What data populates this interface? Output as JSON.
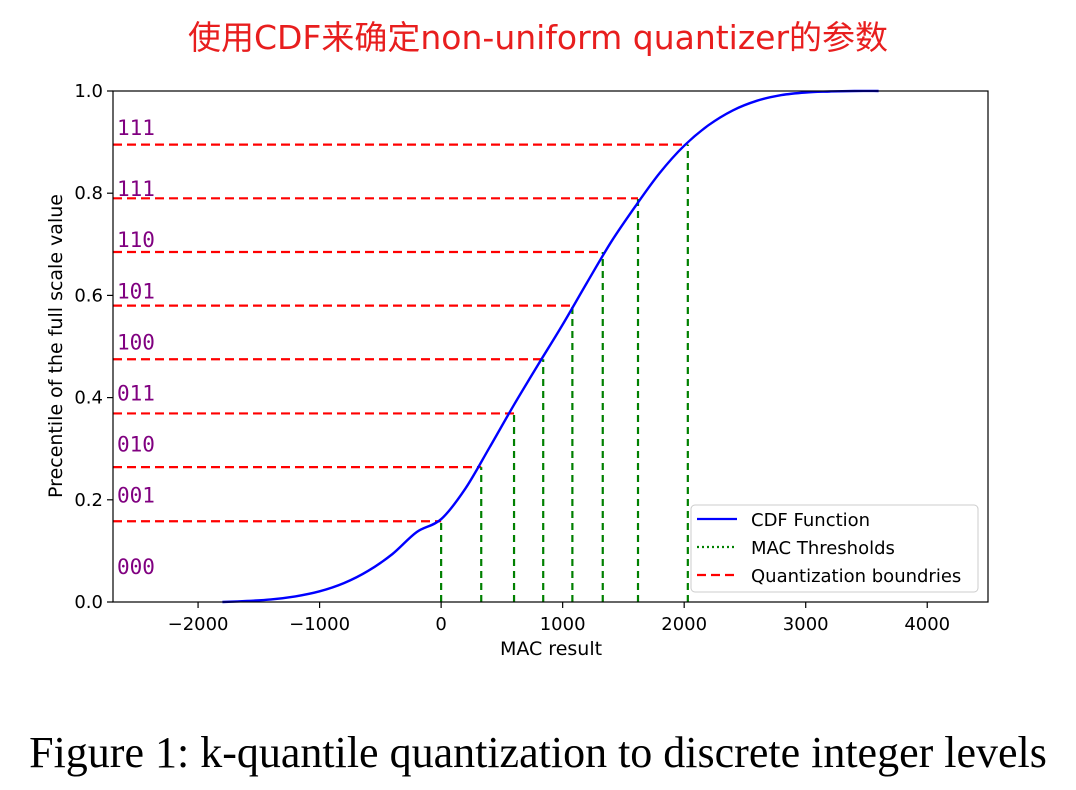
{
  "banner": "使用CDF来确定non-uniform quantizer的参数",
  "caption": "Figure 1: k-quantile quantization to discrete integer levels",
  "colors": {
    "cdf": "#0000ff",
    "threshold": "#008000",
    "boundary": "#ff0000",
    "code_label": "#800080"
  },
  "chart_data": {
    "type": "line",
    "title": "",
    "xlabel": "MAC result",
    "ylabel": "Precentile of the full scale value",
    "xlim": [
      -2700,
      4500
    ],
    "ylim": [
      0.0,
      1.0
    ],
    "x_ticks": [
      -2000,
      -1000,
      0,
      1000,
      2000,
      3000,
      4000
    ],
    "x_tick_labels": [
      "−2000",
      "−1000",
      "0",
      "1000",
      "2000",
      "3000",
      "4000"
    ],
    "y_ticks": [
      0.0,
      0.2,
      0.4,
      0.6,
      0.8,
      1.0
    ],
    "y_tick_labels": [
      "0.0",
      "0.2",
      "0.4",
      "0.6",
      "0.8",
      "1.0"
    ],
    "legend": {
      "placement": "lower right",
      "entries": [
        "CDF Function",
        "MAC Thresholds",
        "Quantization boundries"
      ]
    },
    "series": [
      {
        "name": "CDF Function",
        "style": "solid",
        "x": [
          -1800,
          -1600,
          -1400,
          -1200,
          -1000,
          -800,
          -600,
          -400,
          -200,
          0,
          200,
          400,
          600,
          800,
          1000,
          1200,
          1400,
          1600,
          1800,
          2000,
          2200,
          2400,
          2600,
          2800,
          3000,
          3200,
          3400,
          3600
        ],
        "y": [
          0.0,
          0.002,
          0.005,
          0.011,
          0.021,
          0.037,
          0.061,
          0.094,
          0.137,
          0.162,
          0.222,
          0.303,
          0.386,
          0.465,
          0.543,
          0.625,
          0.705,
          0.775,
          0.84,
          0.893,
          0.933,
          0.962,
          0.981,
          0.992,
          0.997,
          0.999,
          1.0,
          1.0
        ]
      },
      {
        "name": "MAC Thresholds",
        "style": "dashed",
        "thresholds": [
          {
            "x": 0,
            "y": 0.158
          },
          {
            "x": 330,
            "y": 0.264
          },
          {
            "x": 600,
            "y": 0.369
          },
          {
            "x": 840,
            "y": 0.475
          },
          {
            "x": 1080,
            "y": 0.58
          },
          {
            "x": 1330,
            "y": 0.685
          },
          {
            "x": 1620,
            "y": 0.79
          },
          {
            "x": 2030,
            "y": 0.895
          }
        ]
      },
      {
        "name": "Quantization boundries",
        "style": "dashed",
        "y": [
          0.158,
          0.264,
          0.369,
          0.475,
          0.58,
          0.685,
          0.79,
          0.895
        ]
      }
    ],
    "annotations": [
      {
        "text": "000",
        "x": -2700,
        "y": 0.07
      },
      {
        "text": "001",
        "x": -2700,
        "y": 0.21
      },
      {
        "text": "010",
        "x": -2700,
        "y": 0.31
      },
      {
        "text": "011",
        "x": -2700,
        "y": 0.41
      },
      {
        "text": "100",
        "x": -2700,
        "y": 0.51
      },
      {
        "text": "101",
        "x": -2700,
        "y": 0.61
      },
      {
        "text": "110",
        "x": -2700,
        "y": 0.71
      },
      {
        "text": "111",
        "x": -2700,
        "y": 0.81
      },
      {
        "text": "111",
        "x": -2700,
        "y": 0.93
      }
    ]
  }
}
